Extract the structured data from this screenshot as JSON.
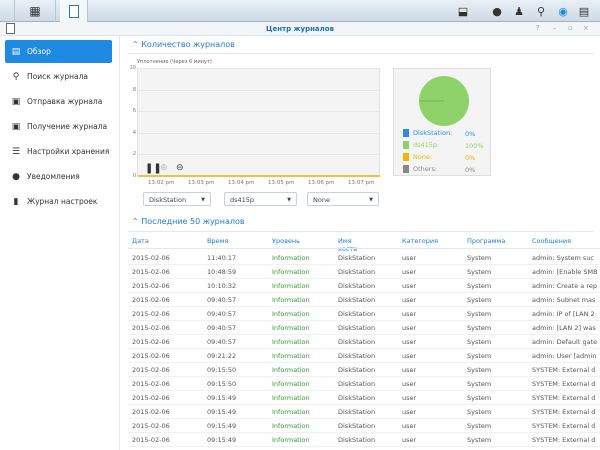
{
  "topbar": {
    "icons": [
      "main-menu-icon",
      "log-center-app-icon",
      "download-icon",
      "chat-icon",
      "user-icon",
      "search-icon",
      "notification-icon",
      "widgets-icon"
    ]
  },
  "window": {
    "title": "Центр журналов",
    "controls": [
      "?",
      "–",
      "▫",
      "×"
    ]
  },
  "sidebar": {
    "items": [
      {
        "label": "Обзор",
        "icon": "overview-icon",
        "active": true
      },
      {
        "label": "Поиск журнала",
        "icon": "search-icon"
      },
      {
        "label": "Отправка журнала",
        "icon": "send-icon"
      },
      {
        "label": "Получение журнала",
        "icon": "receive-icon"
      },
      {
        "label": "Настройки хранения",
        "icon": "storage-icon"
      },
      {
        "label": "Уведомления",
        "icon": "chat-icon"
      },
      {
        "label": "Журнал настроек",
        "icon": "document-icon"
      }
    ]
  },
  "overview": {
    "title": "Количество журналов",
    "chart_label": "Уплотнение (Через 6 минут)",
    "dropdowns": [
      "DiskStation",
      "ds415p",
      "None"
    ]
  },
  "chart_data": [
    {
      "type": "line",
      "title": "Уплотнение (Через 6 минут)",
      "ylim": [
        0,
        10
      ],
      "yticks": [
        "0",
        "2",
        "4",
        "6",
        "8",
        "10"
      ],
      "categories": [
        "13:02 pm",
        "13:03 pm",
        "13:04 pm",
        "13:05 pm",
        "13:06 pm",
        "13:07 pm"
      ],
      "values": [
        0,
        0,
        0,
        0,
        0,
        0
      ],
      "line_color": "#f0c040",
      "grid": true
    },
    {
      "type": "pie",
      "slices": [
        {
          "name": "DiskStation:",
          "value": "0%",
          "color": "#2b8ce6"
        },
        {
          "name": "ds415p:",
          "value": "100%",
          "color": "#8fd26a"
        },
        {
          "name": "None:",
          "value": "0%",
          "color": "#f5b400"
        },
        {
          "name": "Others:",
          "value": "0%",
          "color": "#888888"
        }
      ]
    }
  ],
  "logs": {
    "title": "Последние 50 журналов",
    "columns": [
      "Дата",
      "Время",
      "Уровень",
      "Имя хоста",
      "Категория",
      "Программа",
      "Сообщения"
    ],
    "rows": [
      [
        "2015-02-06",
        "11:40:17",
        "Information",
        "DiskStation",
        "user",
        "System",
        "admin: System suc"
      ],
      [
        "2015-02-06",
        "10:48:59",
        "Information",
        "DiskStation",
        "user",
        "System",
        "admin: [Enable SMB"
      ],
      [
        "2015-02-06",
        "10:10:32",
        "Information",
        "DiskStation",
        "user",
        "System",
        "admin: Create a rep"
      ],
      [
        "2015-02-06",
        "09:40:57",
        "Information",
        "DiskStation",
        "user",
        "System",
        "admin: Subnet mas"
      ],
      [
        "2015-02-06",
        "09:40:57",
        "Information",
        "DiskStation",
        "user",
        "System",
        "admin: IP of [LAN 2"
      ],
      [
        "2015-02-06",
        "09:40:57",
        "Information",
        "DiskStation",
        "user",
        "System",
        "admin: [LAN 2] was"
      ],
      [
        "2015-02-06",
        "09:40:57",
        "Information",
        "DiskStation",
        "user",
        "System",
        "admin: Default gate"
      ],
      [
        "2015-02-06",
        "09:21:22",
        "Information",
        "DiskStation",
        "user",
        "System",
        "admin: User [admin"
      ],
      [
        "2015-02-06",
        "09:15:50",
        "Information",
        "DiskStation",
        "user",
        "System",
        "SYSTEM: External d"
      ],
      [
        "2015-02-06",
        "09:15:50",
        "Information",
        "DiskStation",
        "user",
        "System",
        "SYSTEM: External d"
      ],
      [
        "2015-02-06",
        "09:15:49",
        "Information",
        "DiskStation",
        "user",
        "System",
        "SYSTEM: External d"
      ],
      [
        "2015-02-06",
        "09:15:49",
        "Information",
        "DiskStation",
        "user",
        "System",
        "SYSTEM: External d"
      ],
      [
        "2015-02-06",
        "09:15:49",
        "Information",
        "DiskStation",
        "user",
        "System",
        "SYSTEM: External d"
      ],
      [
        "2015-02-06",
        "09:15:49",
        "Information",
        "DiskStation",
        "user",
        "System",
        "SYSTEM: External d"
      ]
    ]
  }
}
